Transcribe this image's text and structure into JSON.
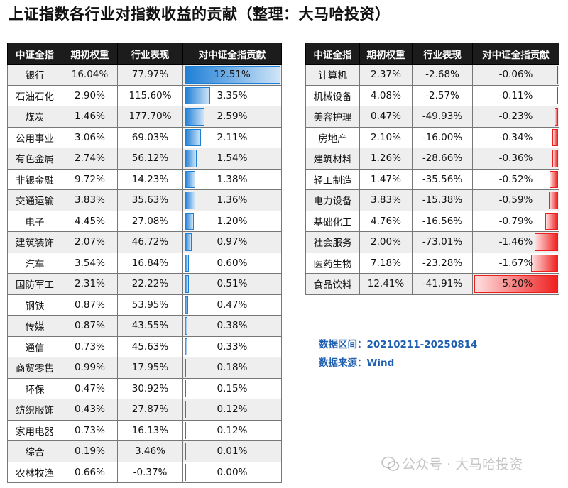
{
  "title": "上证指数各行业对指数收益的贡献（整理：大马哈投资）",
  "chart_data": [
    {
      "type": "table",
      "columns": [
        "中证全指",
        "期初权重",
        "行业表现",
        "对中证全指贡献"
      ],
      "rows": [
        {
          "industry": "银行",
          "weight": "16.04%",
          "perf": "77.97%",
          "contrib": "12.51%",
          "value": 12.51
        },
        {
          "industry": "石油石化",
          "weight": "2.90%",
          "perf": "115.60%",
          "contrib": "3.35%",
          "value": 3.35
        },
        {
          "industry": "煤炭",
          "weight": "1.46%",
          "perf": "177.70%",
          "contrib": "2.59%",
          "value": 2.59
        },
        {
          "industry": "公用事业",
          "weight": "3.06%",
          "perf": "69.03%",
          "contrib": "2.11%",
          "value": 2.11
        },
        {
          "industry": "有色金属",
          "weight": "2.74%",
          "perf": "56.12%",
          "contrib": "1.54%",
          "value": 1.54
        },
        {
          "industry": "非银金融",
          "weight": "9.72%",
          "perf": "14.23%",
          "contrib": "1.38%",
          "value": 1.38
        },
        {
          "industry": "交通运输",
          "weight": "3.83%",
          "perf": "35.63%",
          "contrib": "1.36%",
          "value": 1.36
        },
        {
          "industry": "电子",
          "weight": "4.45%",
          "perf": "27.08%",
          "contrib": "1.20%",
          "value": 1.2
        },
        {
          "industry": "建筑装饰",
          "weight": "2.07%",
          "perf": "46.72%",
          "contrib": "0.97%",
          "value": 0.97
        },
        {
          "industry": "汽车",
          "weight": "3.54%",
          "perf": "16.84%",
          "contrib": "0.60%",
          "value": 0.6
        },
        {
          "industry": "国防军工",
          "weight": "2.31%",
          "perf": "22.22%",
          "contrib": "0.51%",
          "value": 0.51
        },
        {
          "industry": "钢铁",
          "weight": "0.87%",
          "perf": "53.95%",
          "contrib": "0.47%",
          "value": 0.47
        },
        {
          "industry": "传媒",
          "weight": "0.87%",
          "perf": "43.55%",
          "contrib": "0.38%",
          "value": 0.38
        },
        {
          "industry": "通信",
          "weight": "0.73%",
          "perf": "45.63%",
          "contrib": "0.33%",
          "value": 0.33
        },
        {
          "industry": "商贸零售",
          "weight": "0.99%",
          "perf": "17.95%",
          "contrib": "0.18%",
          "value": 0.18
        },
        {
          "industry": "环保",
          "weight": "0.47%",
          "perf": "30.92%",
          "contrib": "0.15%",
          "value": 0.15
        },
        {
          "industry": "纺织服饰",
          "weight": "0.43%",
          "perf": "27.87%",
          "contrib": "0.12%",
          "value": 0.12
        },
        {
          "industry": "家用电器",
          "weight": "0.73%",
          "perf": "16.13%",
          "contrib": "0.12%",
          "value": 0.12
        },
        {
          "industry": "综合",
          "weight": "0.19%",
          "perf": "3.46%",
          "contrib": "0.01%",
          "value": 0.01
        },
        {
          "industry": "农林牧渔",
          "weight": "0.66%",
          "perf": "-0.37%",
          "contrib": "0.00%",
          "value": 0.0
        }
      ],
      "bar_max": 12.51,
      "bar_color": "#1e7fd6"
    },
    {
      "type": "table",
      "columns": [
        "中证全指",
        "期初权重",
        "行业表现",
        "对中证全指贡献"
      ],
      "rows": [
        {
          "industry": "计算机",
          "weight": "2.37%",
          "perf": "-2.68%",
          "contrib": "-0.06%",
          "value": -0.06
        },
        {
          "industry": "机械设备",
          "weight": "4.08%",
          "perf": "-2.57%",
          "contrib": "-0.11%",
          "value": -0.11
        },
        {
          "industry": "美容护理",
          "weight": "0.47%",
          "perf": "-49.93%",
          "contrib": "-0.23%",
          "value": -0.23
        },
        {
          "industry": "房地产",
          "weight": "2.10%",
          "perf": "-16.00%",
          "contrib": "-0.34%",
          "value": -0.34
        },
        {
          "industry": "建筑材料",
          "weight": "1.26%",
          "perf": "-28.66%",
          "contrib": "-0.36%",
          "value": -0.36
        },
        {
          "industry": "轻工制造",
          "weight": "1.47%",
          "perf": "-35.56%",
          "contrib": "-0.52%",
          "value": -0.52
        },
        {
          "industry": "电力设备",
          "weight": "3.83%",
          "perf": "-15.38%",
          "contrib": "-0.59%",
          "value": -0.59
        },
        {
          "industry": "基础化工",
          "weight": "4.76%",
          "perf": "-16.56%",
          "contrib": "-0.79%",
          "value": -0.79
        },
        {
          "industry": "社会服务",
          "weight": "2.00%",
          "perf": "-73.01%",
          "contrib": "-1.46%",
          "value": -1.46
        },
        {
          "industry": "医药生物",
          "weight": "7.18%",
          "perf": "-23.28%",
          "contrib": "-1.67%",
          "value": -1.67
        },
        {
          "industry": "食品饮料",
          "weight": "12.41%",
          "perf": "-41.91%",
          "contrib": "-5.20%",
          "value": -5.2
        }
      ],
      "bar_max": 5.2,
      "bar_color": "#ef1f1f"
    }
  ],
  "info": {
    "range": "数据区间：20210211-20250814",
    "source": "数据来源：Wind"
  },
  "watermark": "公众号 · 大马哈投资"
}
